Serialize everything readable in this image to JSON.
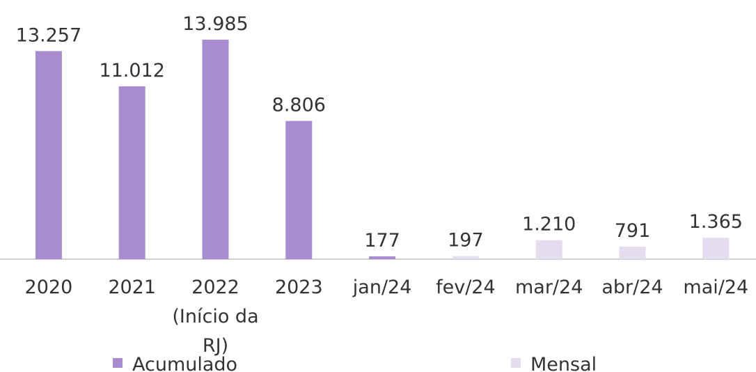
{
  "chart_data": {
    "type": "bar",
    "categories": [
      "2020",
      "2021",
      "2022\n(Início da RJ)",
      "2023",
      "jan/24",
      "fev/24",
      "mar/24",
      "abr/24",
      "mai/24"
    ],
    "series": [
      {
        "name": "Acumulado",
        "color": "#a98bd0",
        "values": [
          13257,
          11012,
          13985,
          8806,
          177,
          null,
          null,
          null,
          null
        ],
        "value_labels": [
          "13.257",
          "11.012",
          "13.985",
          "8.806",
          "177",
          null,
          null,
          null,
          null
        ]
      },
      {
        "name": "Mensal",
        "color": "#e4dcef",
        "values": [
          null,
          null,
          null,
          null,
          null,
          197,
          1210,
          791,
          1365
        ],
        "value_labels": [
          null,
          null,
          null,
          null,
          null,
          "197",
          "1.210",
          "791",
          "1.365"
        ]
      }
    ],
    "ylim": [
      0,
      14000
    ],
    "legend": "bottom"
  }
}
